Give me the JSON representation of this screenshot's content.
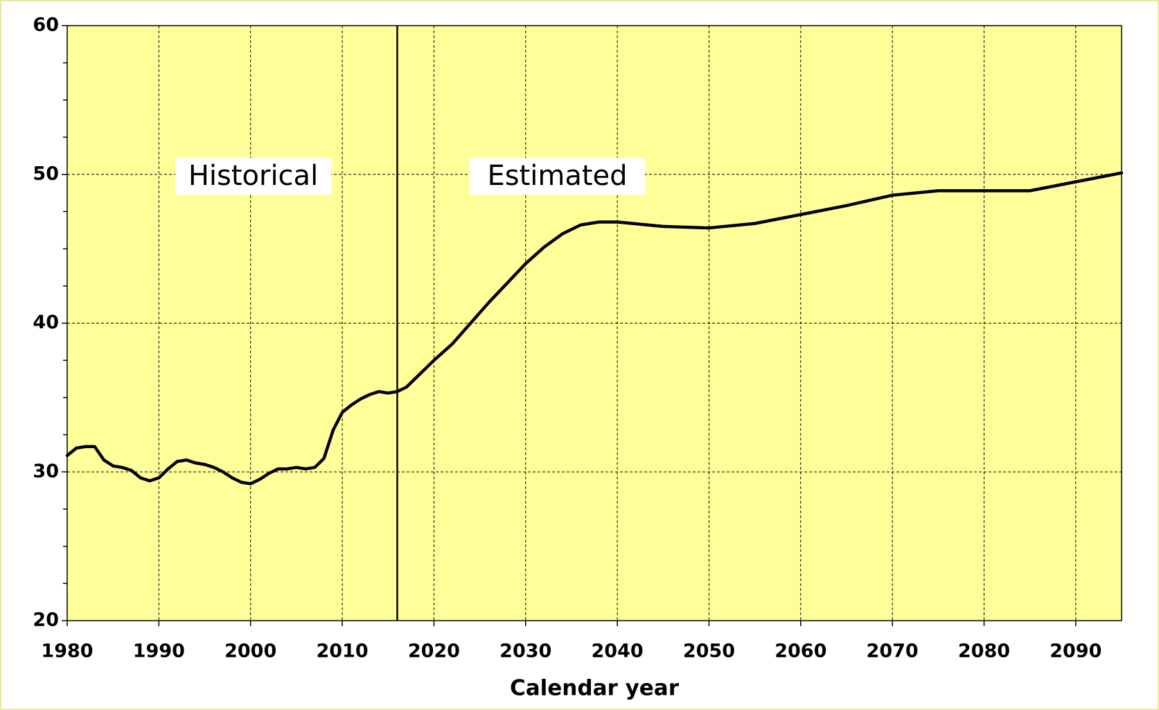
{
  "chart_data": {
    "type": "line",
    "xlabel": "Calendar year",
    "x": [
      1980,
      1981,
      1982,
      1983,
      1984,
      1985,
      1986,
      1987,
      1988,
      1989,
      1990,
      1991,
      1992,
      1993,
      1994,
      1995,
      1996,
      1997,
      1998,
      1999,
      2000,
      2001,
      2002,
      2003,
      2004,
      2005,
      2006,
      2007,
      2008,
      2009,
      2010,
      2011,
      2012,
      2013,
      2014,
      2015,
      2016,
      2017,
      2018,
      2019,
      2020,
      2022,
      2024,
      2026,
      2028,
      2030,
      2032,
      2034,
      2036,
      2038,
      2040,
      2045,
      2050,
      2055,
      2060,
      2065,
      2070,
      2075,
      2080,
      2085,
      2090,
      2095
    ],
    "series": [
      {
        "color": "#000000",
        "values": [
          31.1,
          31.6,
          31.7,
          31.7,
          30.8,
          30.4,
          30.3,
          30.1,
          29.6,
          29.4,
          29.6,
          30.2,
          30.7,
          30.8,
          30.6,
          30.5,
          30.3,
          30.0,
          29.6,
          29.3,
          29.2,
          29.5,
          29.9,
          30.2,
          30.2,
          30.3,
          30.2,
          30.3,
          30.9,
          32.8,
          34.0,
          34.5,
          34.9,
          35.2,
          35.4,
          35.3,
          35.4,
          35.7,
          36.3,
          36.9,
          37.5,
          38.6,
          40.0,
          41.4,
          42.7,
          44.0,
          45.1,
          46.0,
          46.6,
          46.8,
          46.8,
          46.5,
          46.4,
          46.7,
          47.3,
          47.9,
          48.6,
          48.9,
          48.9,
          48.9,
          49.5,
          50.1
        ]
      }
    ],
    "xlim": [
      1980,
      2095
    ],
    "xticks": [
      1980,
      1990,
      2000,
      2010,
      2020,
      2030,
      2040,
      2050,
      2060,
      2070,
      2080,
      2090
    ],
    "ylim": [
      20,
      60
    ],
    "yticks": [
      20,
      30,
      40,
      50,
      60
    ],
    "yminor_ticks": [
      22.5,
      25,
      27.5,
      32.5,
      35,
      37.5,
      42.5,
      45,
      47.5,
      52.5,
      55,
      57.5
    ],
    "grid": true,
    "plot_color": "#ffff99",
    "divider_x": 2016,
    "annotations": [
      "Historical",
      "Estimated"
    ]
  }
}
